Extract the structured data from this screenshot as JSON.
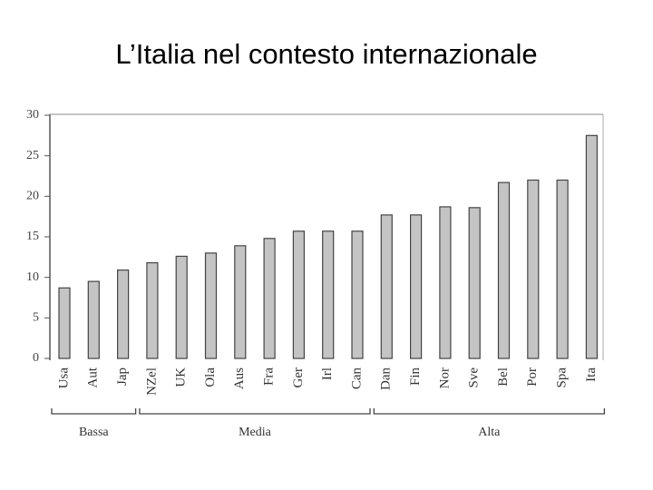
{
  "chart_data": {
    "type": "bar",
    "title": "L’Italia nel contesto internazionale",
    "categories": [
      "Usa",
      "Aut",
      "Jap",
      "NZel",
      "UK",
      "Ola",
      "Aus",
      "Fra",
      "Ger",
      "Irl",
      "Can",
      "Dan",
      "Fin",
      "Nor",
      "Sve",
      "Bel",
      "Por",
      "Spa",
      "Ita"
    ],
    "values": [
      8.7,
      9.5,
      10.9,
      11.8,
      12.6,
      13.0,
      13.9,
      14.8,
      15.7,
      15.7,
      15.7,
      17.7,
      17.7,
      18.7,
      18.6,
      21.7,
      22.0,
      22.0,
      27.5
    ],
    "color": "#c4c4c4",
    "ylim": [
      0,
      30
    ],
    "yticks": [
      0,
      5,
      10,
      15,
      20,
      25,
      30
    ],
    "groups": [
      {
        "label": "Bassa"
      },
      {
        "label": "Media"
      },
      {
        "label": "Alta"
      }
    ]
  }
}
